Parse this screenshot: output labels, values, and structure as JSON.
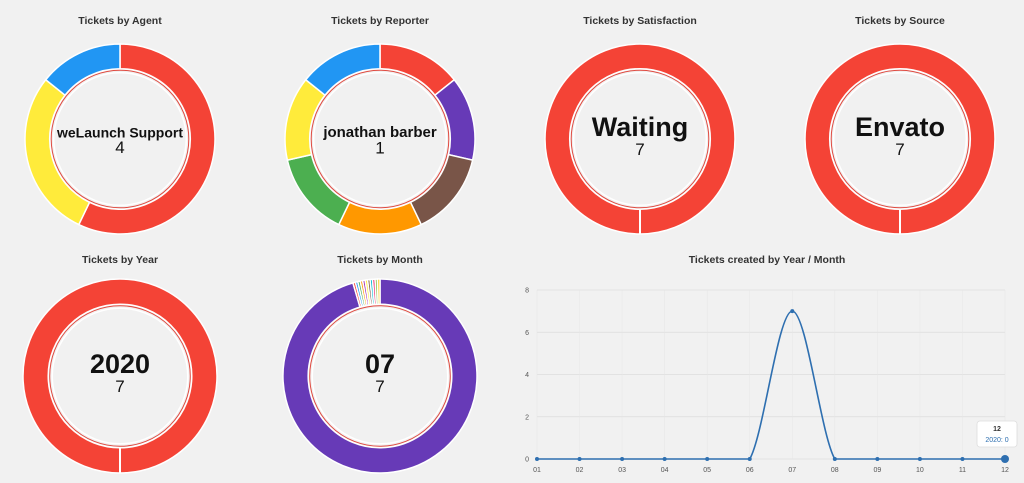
{
  "chart_data": [
    {
      "type": "pie",
      "title": "Tickets by Agent",
      "center_label": "weLaunch Support",
      "center_value": "4",
      "label_font_size": 14,
      "slices": [
        {
          "value": 4,
          "color": "#f44336"
        },
        {
          "value": 2,
          "color": "#ffeb3b"
        },
        {
          "value": 1,
          "color": "#2196f3"
        }
      ]
    },
    {
      "type": "pie",
      "title": "Tickets by Reporter",
      "center_label": "jonathan barber",
      "center_value": "1",
      "label_font_size": 15,
      "slices": [
        {
          "value": 1,
          "color": "#f44336"
        },
        {
          "value": 1,
          "color": "#673ab7"
        },
        {
          "value": 1,
          "color": "#795548"
        },
        {
          "value": 1,
          "color": "#ff9800"
        },
        {
          "value": 1,
          "color": "#4caf50"
        },
        {
          "value": 1,
          "color": "#ffeb3b"
        },
        {
          "value": 1,
          "color": "#2196f3"
        }
      ]
    },
    {
      "type": "pie",
      "title": "Tickets by Satisfaction",
      "center_label": "Waiting",
      "center_value": "7",
      "label_font_size": 27,
      "slices": [
        {
          "value": 7,
          "color": "#f44336"
        }
      ]
    },
    {
      "type": "pie",
      "title": "Tickets by Source",
      "center_label": "Envato",
      "center_value": "7",
      "label_font_size": 27,
      "slices": [
        {
          "value": 7,
          "color": "#f44336"
        }
      ]
    },
    {
      "type": "pie",
      "title": "Tickets by Year",
      "center_label": "2020",
      "center_value": "7",
      "label_font_size": 27,
      "slices": [
        {
          "value": 7,
          "color": "#f44336"
        }
      ]
    },
    {
      "type": "pie",
      "title": "Tickets by Month",
      "center_label": "07",
      "center_value": "7",
      "label_font_size": 27,
      "slices": [
        {
          "value": 7,
          "color": "#673ab7"
        },
        {
          "value": 0.03,
          "color": "#f44336"
        },
        {
          "value": 0.03,
          "color": "#2196f3"
        },
        {
          "value": 0.03,
          "color": "#4caf50"
        },
        {
          "value": 0.03,
          "color": "#ff9800"
        },
        {
          "value": 0.03,
          "color": "#9c27b0"
        },
        {
          "value": 0.03,
          "color": "#ffeb3b"
        },
        {
          "value": 0.03,
          "color": "#795548"
        },
        {
          "value": 0.03,
          "color": "#00bcd4"
        },
        {
          "value": 0.03,
          "color": "#e91e63"
        },
        {
          "value": 0.03,
          "color": "#8bc34a"
        },
        {
          "value": 0.03,
          "color": "#ffc107"
        }
      ]
    },
    {
      "type": "line",
      "title": "Tickets created by Year / Month",
      "x": [
        "01",
        "02",
        "03",
        "04",
        "05",
        "06",
        "07",
        "08",
        "09",
        "10",
        "11",
        "12"
      ],
      "series": [
        {
          "values": [
            0,
            0,
            0,
            0,
            0,
            0,
            7,
            0,
            0,
            0,
            0,
            0
          ],
          "color": "#2e6fb0"
        }
      ],
      "ylim": [
        0,
        8
      ],
      "yticks": [
        0,
        2,
        4,
        6,
        8
      ],
      "grid": true,
      "tooltip": {
        "title": "12",
        "body": "2020: 0"
      }
    }
  ]
}
